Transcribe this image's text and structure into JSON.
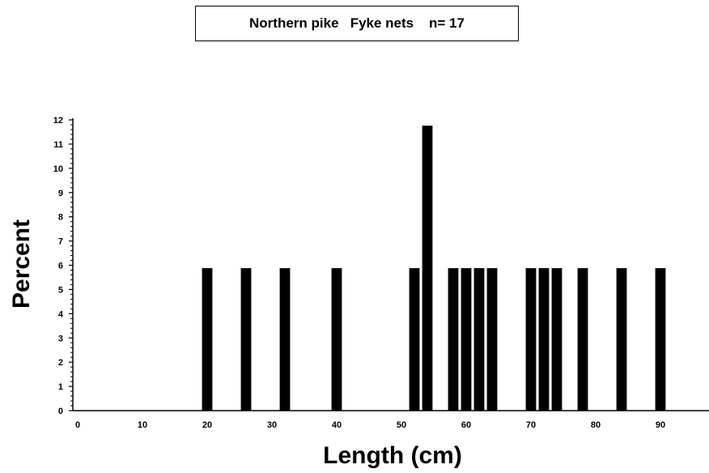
{
  "chart_data": {
    "type": "bar",
    "title": "Northern pike   Fyke nets    n= 17",
    "xlabel": "Length  (cm)",
    "ylabel": "Percent",
    "xlim": [
      0,
      95
    ],
    "ylim": [
      0,
      12
    ],
    "xticks": [
      0,
      10,
      20,
      30,
      40,
      50,
      60,
      70,
      80,
      90
    ],
    "yticks": [
      0,
      1,
      2,
      3,
      4,
      5,
      6,
      7,
      8,
      9,
      10,
      11,
      12
    ],
    "bar_width": 1.6,
    "x": [
      20,
      26,
      32,
      40,
      52,
      54,
      58,
      60,
      62,
      64,
      70,
      72,
      74,
      78,
      84,
      90
    ],
    "values": [
      5.88,
      5.88,
      5.88,
      5.88,
      5.88,
      11.76,
      5.88,
      5.88,
      5.88,
      5.88,
      5.88,
      5.88,
      5.88,
      5.88,
      5.88,
      5.88
    ],
    "bar_color": "#000000",
    "grid": false
  }
}
